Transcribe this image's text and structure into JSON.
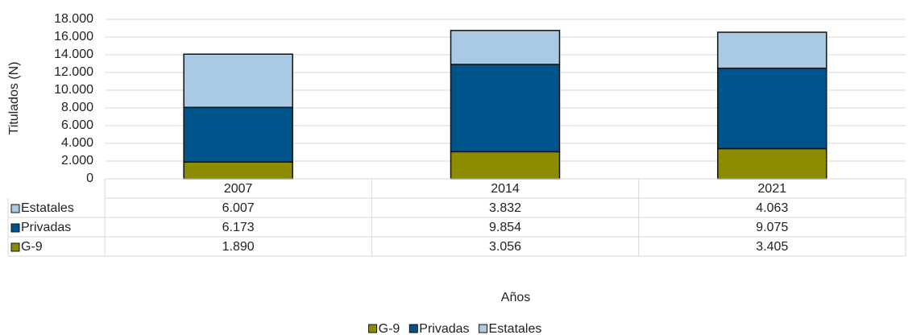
{
  "chart_data": {
    "type": "stacked-bar",
    "ylabel": "Titulados (N)",
    "xlabel": "Años",
    "categories": [
      "2007",
      "2014",
      "2021"
    ],
    "series": [
      {
        "name": "G-9",
        "color": "#8c8c00",
        "values": [
          1890,
          3056,
          3405
        ],
        "value_labels": [
          "1.890",
          "3.056",
          "3.405"
        ]
      },
      {
        "name": "Privadas",
        "color": "#00548c",
        "values": [
          6173,
          9854,
          9075
        ],
        "value_labels": [
          "6.173",
          "9.854",
          "9.075"
        ]
      },
      {
        "name": "Estatales",
        "color": "#a9c9e4",
        "values": [
          6007,
          3832,
          4063
        ],
        "value_labels": [
          "6.007",
          "3.832",
          "4.063"
        ]
      }
    ],
    "ylim": [
      0,
      18000
    ],
    "yticks": [
      0,
      {
        "value": 2000,
        "label": "2.000"
      },
      {
        "value": 4000,
        "label": "4.000"
      },
      {
        "value": 6000,
        "label": "6.000"
      },
      {
        "value": 8000,
        "label": "8.000"
      },
      {
        "value": 10000,
        "label": "10.000"
      },
      {
        "value": 12000,
        "label": "12.000"
      },
      {
        "value": 14000,
        "label": "14.000"
      },
      {
        "value": 16000,
        "label": "16.000"
      },
      {
        "value": 18000,
        "label": "18.000"
      }
    ],
    "grid": true,
    "legend": "bottom"
  }
}
